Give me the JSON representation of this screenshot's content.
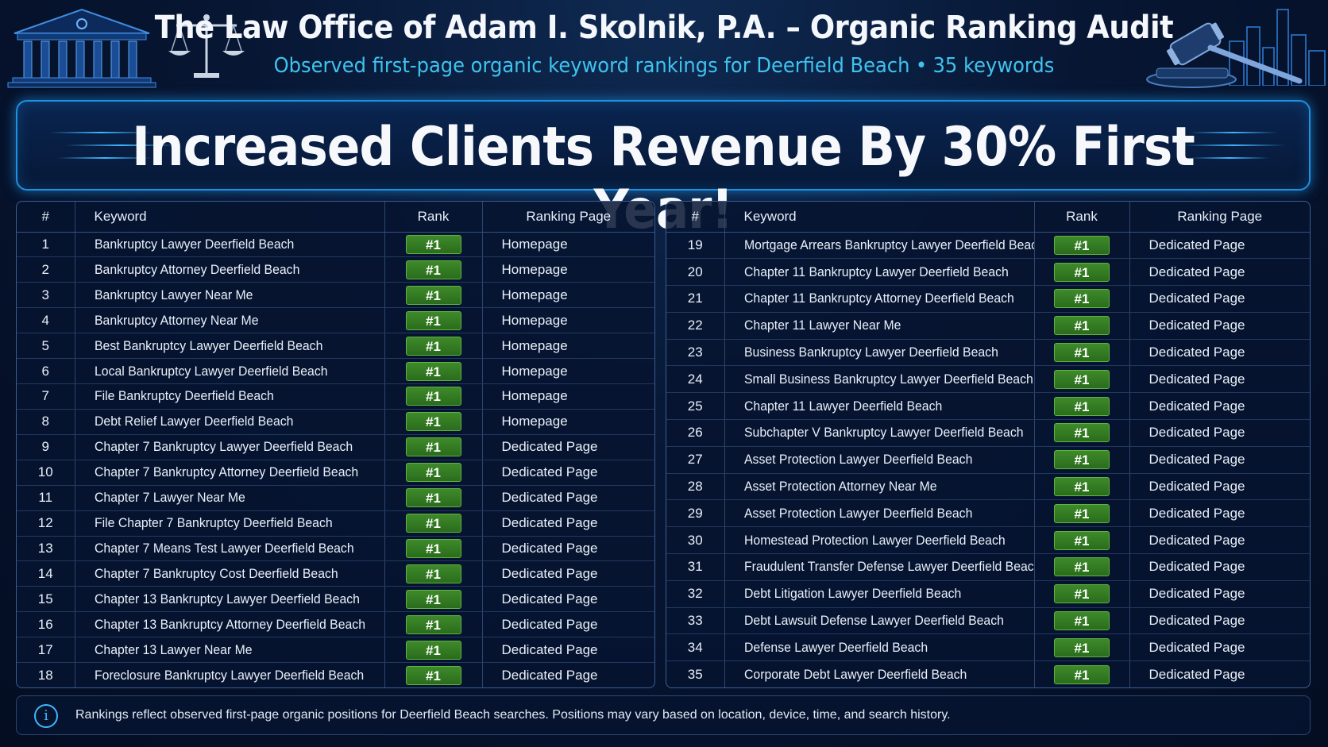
{
  "header": {
    "title": "The Law Office of Adam I. Skolnik, P.A. – Organic Ranking Audit",
    "subtitle_main": "Observed first-page organic keyword rankings for Deerfield Beach",
    "subtitle_dot": "•",
    "subtitle_count": "35 keywords"
  },
  "banner": {
    "text": "Increased Clients Revenue By 30% First Year!"
  },
  "table": {
    "columns": {
      "num": "#",
      "keyword": "Keyword",
      "rank": "Rank",
      "page": "Ranking Page"
    },
    "left_rows": [
      {
        "num": "1",
        "keyword": "Bankruptcy Lawyer Deerfield Beach",
        "rank": "#1",
        "page": "Homepage"
      },
      {
        "num": "2",
        "keyword": "Bankruptcy Attorney Deerfield Beach",
        "rank": "#1",
        "page": "Homepage"
      },
      {
        "num": "3",
        "keyword": "Bankruptcy Lawyer Near Me",
        "rank": "#1",
        "page": "Homepage"
      },
      {
        "num": "4",
        "keyword": "Bankruptcy Attorney Near Me",
        "rank": "#1",
        "page": "Homepage"
      },
      {
        "num": "5",
        "keyword": "Best Bankruptcy Lawyer Deerfield Beach",
        "rank": "#1",
        "page": "Homepage"
      },
      {
        "num": "6",
        "keyword": "Local Bankruptcy Lawyer Deerfield Beach",
        "rank": "#1",
        "page": "Homepage"
      },
      {
        "num": "7",
        "keyword": "File Bankruptcy Deerfield Beach",
        "rank": "#1",
        "page": "Homepage"
      },
      {
        "num": "8",
        "keyword": "Debt Relief Lawyer Deerfield Beach",
        "rank": "#1",
        "page": "Homepage"
      },
      {
        "num": "9",
        "keyword": "Chapter 7 Bankruptcy Lawyer Deerfield Beach",
        "rank": "#1",
        "page": "Dedicated Page"
      },
      {
        "num": "10",
        "keyword": "Chapter 7 Bankruptcy Attorney Deerfield Beach",
        "rank": "#1",
        "page": "Dedicated Page"
      },
      {
        "num": "11",
        "keyword": "Chapter 7 Lawyer Near Me",
        "rank": "#1",
        "page": "Dedicated Page"
      },
      {
        "num": "12",
        "keyword": "File Chapter 7 Bankruptcy Deerfield Beach",
        "rank": "#1",
        "page": "Dedicated Page"
      },
      {
        "num": "13",
        "keyword": "Chapter 7 Means Test Lawyer Deerfield Beach",
        "rank": "#1",
        "page": "Dedicated Page"
      },
      {
        "num": "14",
        "keyword": "Chapter 7 Bankruptcy Cost Deerfield Beach",
        "rank": "#1",
        "page": "Dedicated Page"
      },
      {
        "num": "15",
        "keyword": "Chapter 13 Bankruptcy Lawyer Deerfield Beach",
        "rank": "#1",
        "page": "Dedicated Page"
      },
      {
        "num": "16",
        "keyword": "Chapter 13 Bankruptcy Attorney Deerfield Beach",
        "rank": "#1",
        "page": "Dedicated Page"
      },
      {
        "num": "17",
        "keyword": "Chapter 13 Lawyer Near Me",
        "rank": "#1",
        "page": "Dedicated Page"
      },
      {
        "num": "18",
        "keyword": "Foreclosure Bankruptcy Lawyer Deerfield Beach",
        "rank": "#1",
        "page": "Dedicated Page"
      }
    ],
    "right_rows": [
      {
        "num": "19",
        "keyword": "Mortgage Arrears Bankruptcy Lawyer Deerfield Beach",
        "rank": "#1",
        "page": "Dedicated Page"
      },
      {
        "num": "20",
        "keyword": "Chapter 11 Bankruptcy Lawyer Deerfield Beach",
        "rank": "#1",
        "page": "Dedicated Page"
      },
      {
        "num": "21",
        "keyword": "Chapter 11 Bankruptcy Attorney Deerfield Beach",
        "rank": "#1",
        "page": "Dedicated Page"
      },
      {
        "num": "22",
        "keyword": "Chapter 11 Lawyer Near Me",
        "rank": "#1",
        "page": "Dedicated Page"
      },
      {
        "num": "23",
        "keyword": "Business Bankruptcy Lawyer Deerfield Beach",
        "rank": "#1",
        "page": "Dedicated Page"
      },
      {
        "num": "24",
        "keyword": "Small Business Bankruptcy Lawyer Deerfield Beach",
        "rank": "#1",
        "page": "Dedicated Page"
      },
      {
        "num": "25",
        "keyword": "Chapter 11 Lawyer Deerfield Beach",
        "rank": "#1",
        "page": "Dedicated Page"
      },
      {
        "num": "26",
        "keyword": "Subchapter V Bankruptcy Lawyer Deerfield Beach",
        "rank": "#1",
        "page": "Dedicated Page"
      },
      {
        "num": "27",
        "keyword": "Asset Protection Lawyer Deerfield Beach",
        "rank": "#1",
        "page": "Dedicated Page"
      },
      {
        "num": "28",
        "keyword": "Asset Protection Attorney Near Me",
        "rank": "#1",
        "page": "Dedicated Page"
      },
      {
        "num": "29",
        "keyword": "Asset Protection Lawyer Deerfield Beach",
        "rank": "#1",
        "page": "Dedicated Page"
      },
      {
        "num": "30",
        "keyword": "Homestead Protection Lawyer Deerfield Beach",
        "rank": "#1",
        "page": "Dedicated Page"
      },
      {
        "num": "31",
        "keyword": "Fraudulent Transfer Defense Lawyer Deerfield Beach",
        "rank": "#1",
        "page": "Dedicated Page"
      },
      {
        "num": "32",
        "keyword": "Debt Litigation Lawyer Deerfield Beach",
        "rank": "#1",
        "page": "Dedicated Page"
      },
      {
        "num": "33",
        "keyword": "Debt Lawsuit Defense Lawyer Deerfield Beach",
        "rank": "#1",
        "page": "Dedicated Page"
      },
      {
        "num": "34",
        "keyword": "Defense Lawyer Deerfield Beach",
        "rank": "#1",
        "page": "Dedicated Page"
      },
      {
        "num": "35",
        "keyword": "Corporate Debt Lawyer Deerfield Beach",
        "rank": "#1",
        "page": "Dedicated Page"
      }
    ]
  },
  "footer": {
    "icon": "info-icon",
    "icon_glyph": "i",
    "text": "Rankings reflect observed first-page organic positions for Deerfield Beach searches. Positions may vary based on location, device, time, and search history."
  },
  "colors": {
    "background": "#071633",
    "accent_cyan": "#3fc3ee",
    "banner_border": "#1e90e0",
    "rank_badge": "#2f7a22"
  },
  "icons": [
    "courthouse-icon",
    "scales-of-justice-icon",
    "gavel-icon",
    "city-skyline-icon"
  ]
}
